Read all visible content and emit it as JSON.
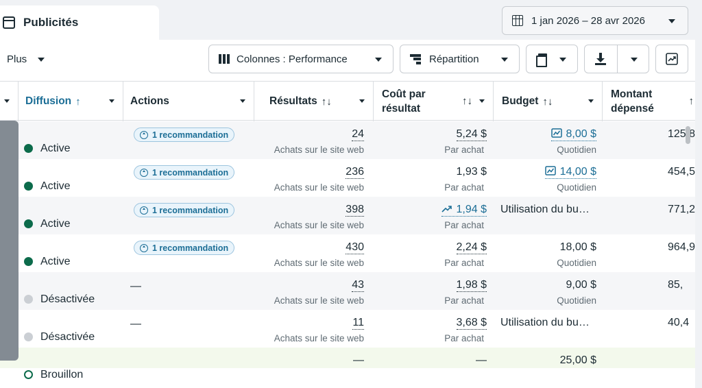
{
  "tab": {
    "title": "Publicités"
  },
  "date_range": {
    "label": "1 jan 2026 – 28 avr 2026"
  },
  "toolbar": {
    "more_label": "Plus",
    "columns_label": "Colonnes : Performance",
    "breakdown_label": "Répartition"
  },
  "columns": {
    "diffusion": "Diffusion",
    "diffusion_sort": "↑",
    "actions": "Actions",
    "results": "Résultats",
    "results_sort": "↑↓",
    "cpr_line1": "Coût par",
    "cpr_line2": "résultat",
    "cpr_sort": "↑↓",
    "budget": "Budget",
    "budget_sort": "↑↓",
    "spent_line1": "Montant",
    "spent_line2": "dépensé",
    "spent_sort": "↑"
  },
  "rows": [
    {
      "status": "Active",
      "state": "on",
      "action": "1 recommandation",
      "results": "24",
      "results_sub": "Achats sur le site web",
      "cpr": "5,24 $",
      "cpr_sub": "Par achat",
      "budget": "8,00 $",
      "budget_sub": "Quotidien",
      "spent": "125,8"
    },
    {
      "status": "Active",
      "state": "on",
      "action": "1 recommandation",
      "results": "236",
      "results_sub": "Achats sur le site web",
      "cpr": "1,93 $",
      "cpr_sub": "Par achat",
      "budget": "14,00 $",
      "budget_sub": "Quotidien",
      "spent": "454,5"
    },
    {
      "status": "Active",
      "state": "on",
      "action": "1 recommandation",
      "results": "398",
      "results_sub": "Achats sur le site web",
      "cpr": "1,94 $",
      "cpr_sub": "Par achat",
      "budget": "Utilisation du bu…",
      "budget_sub": "",
      "spent": "771,2"
    },
    {
      "status": "Active",
      "state": "on",
      "action": "1 recommandation",
      "results": "430",
      "results_sub": "Achats sur le site web",
      "cpr": "2,24 $",
      "cpr_sub": "Par achat",
      "budget": "18,00 $",
      "budget_sub": "Quotidien",
      "spent": "964,9"
    },
    {
      "status": "Désactivée",
      "state": "off",
      "action": "—",
      "results": "43",
      "results_sub": "Achats sur le site web",
      "cpr": "1,98 $",
      "cpr_sub": "Par achat",
      "budget": "9,00 $",
      "budget_sub": "Quotidien",
      "spent": "85,"
    },
    {
      "status": "Désactivée",
      "state": "off",
      "action": "—",
      "results": "11",
      "results_sub": "Achats sur le site web",
      "cpr": "3,68 $",
      "cpr_sub": "Par achat",
      "budget": "Utilisation du bu…",
      "budget_sub": "",
      "spent": "40,4"
    },
    {
      "status": "Brouillon",
      "state": "draft",
      "action": "",
      "results": "—",
      "results_sub": "",
      "cpr": "—",
      "cpr_sub": "",
      "budget": "25,00 $",
      "budget_sub": "",
      "spent": ""
    }
  ],
  "colors": {
    "accent": "#1c6e96",
    "active_dot": "#0c6b4b",
    "inactive_dot": "#cbcfd4"
  },
  "icons": {
    "tab": "ad-icon",
    "date": "calendar-icon",
    "columns": "columns-icon",
    "breakdown": "breakdown-icon",
    "reports": "reports-icon",
    "export": "download-icon",
    "chart": "chart-icon",
    "budget_trend": "trend-chart-icon",
    "cpr_trend": "trend-up-icon",
    "recommendation": "arrow-up-circle-icon"
  }
}
